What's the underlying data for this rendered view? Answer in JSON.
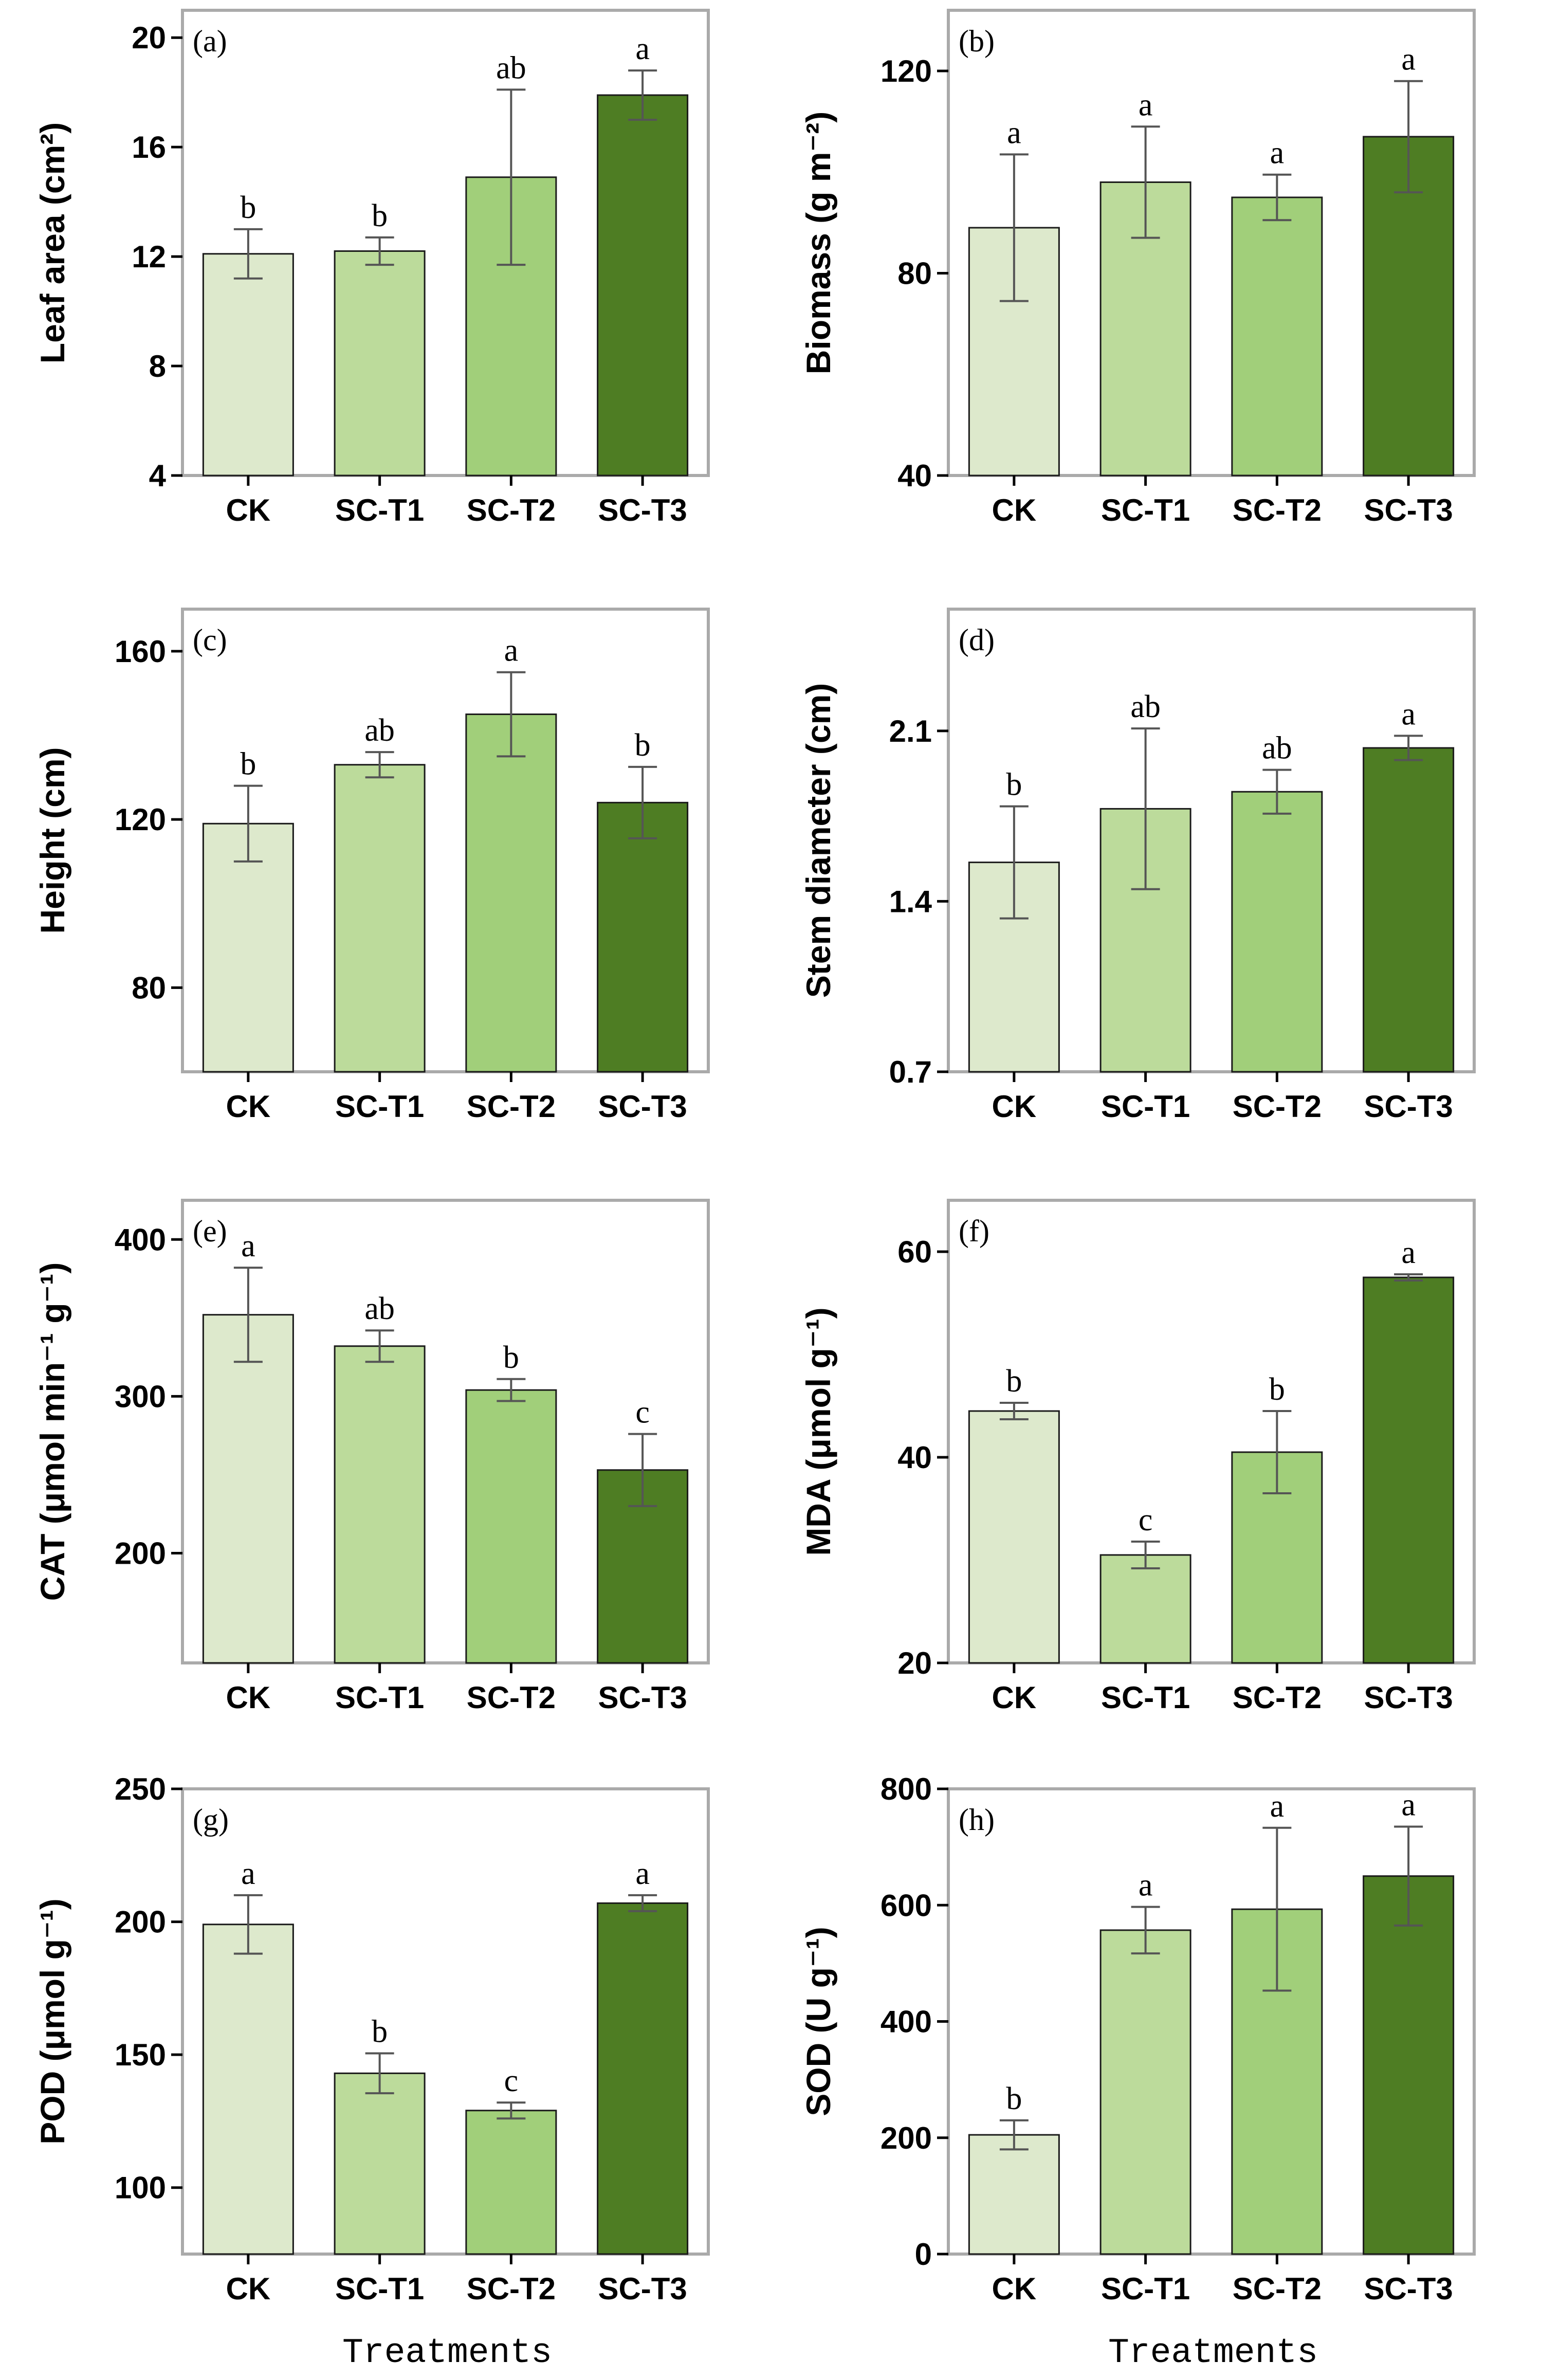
{
  "figure": {
    "xlabel_shared": "Treatments"
  },
  "colors": {
    "bars": [
      "#dde9cc",
      "#bcdb9b",
      "#a1cf7a",
      "#4e7d23"
    ],
    "bar_stroke": "#1a1a1a",
    "frame": "#aaaaaa",
    "error_bar": "#555555"
  },
  "chart_data": [
    {
      "panel": "(a)",
      "type": "bar",
      "categories": [
        "CK",
        "SC-T1",
        "SC-T2",
        "SC-T3"
      ],
      "values": [
        12.1,
        12.2,
        14.9,
        17.9
      ],
      "errors": [
        0.9,
        0.5,
        3.2,
        0.9
      ],
      "letters": [
        "b",
        "b",
        "ab",
        "a"
      ],
      "ylabel": "Leaf area (cm²)",
      "ylim": [
        4,
        21
      ],
      "yticks": [
        4,
        8,
        12,
        16,
        20
      ]
    },
    {
      "panel": "(b)",
      "type": "bar",
      "categories": [
        "CK",
        "SC-T1",
        "SC-T2",
        "SC-T3"
      ],
      "values": [
        89,
        98,
        95,
        107
      ],
      "errors": [
        14.5,
        11,
        4.5,
        11
      ],
      "letters": [
        "a",
        "a",
        "a",
        "a"
      ],
      "ylabel": "Biomass (g m⁻²)",
      "ylim": [
        40,
        132
      ],
      "yticks": [
        40,
        80,
        120
      ]
    },
    {
      "panel": "(c)",
      "type": "bar",
      "categories": [
        "CK",
        "SC-T1",
        "SC-T2",
        "SC-T3"
      ],
      "values": [
        119,
        133,
        145,
        124
      ],
      "errors": [
        9,
        3,
        10,
        8.5
      ],
      "letters": [
        "b",
        "ab",
        "a",
        "b"
      ],
      "ylabel": "Height (cm)",
      "ylim": [
        60,
        170
      ],
      "yticks": [
        80,
        120,
        160
      ]
    },
    {
      "panel": "(d)",
      "type": "bar",
      "categories": [
        "CK",
        "SC-T1",
        "SC-T2",
        "SC-T3"
      ],
      "values": [
        1.56,
        1.78,
        1.85,
        2.03
      ],
      "errors": [
        0.23,
        0.33,
        0.09,
        0.05
      ],
      "letters": [
        "b",
        "ab",
        "ab",
        "a"
      ],
      "ylabel": "Stem diameter (cm)",
      "ylim": [
        0.7,
        2.6
      ],
      "yticks": [
        0.7,
        1.4,
        2.1
      ]
    },
    {
      "panel": "(e)",
      "type": "bar",
      "categories": [
        "CK",
        "SC-T1",
        "SC-T2",
        "SC-T3"
      ],
      "values": [
        352,
        332,
        304,
        253
      ],
      "errors": [
        30,
        10,
        7,
        23
      ],
      "letters": [
        "a",
        "ab",
        "b",
        "c"
      ],
      "ylabel": "CAT (μmol min⁻¹ g⁻¹)",
      "ylim": [
        130,
        425
      ],
      "yticks": [
        200,
        300,
        400
      ]
    },
    {
      "panel": "(f)",
      "type": "bar",
      "categories": [
        "CK",
        "SC-T1",
        "SC-T2",
        "SC-T3"
      ],
      "values": [
        44.5,
        30.5,
        40.5,
        57.5
      ],
      "errors": [
        0.8,
        1.3,
        4,
        0.3
      ],
      "letters": [
        "b",
        "c",
        "b",
        "a"
      ],
      "ylabel": "MDA (μmol g⁻¹)",
      "ylim": [
        20,
        65
      ],
      "yticks": [
        20,
        40,
        60
      ]
    },
    {
      "panel": "(g)",
      "type": "bar",
      "categories": [
        "CK",
        "SC-T1",
        "SC-T2",
        "SC-T3"
      ],
      "values": [
        199,
        143,
        129,
        207
      ],
      "errors": [
        11,
        7.5,
        3,
        3
      ],
      "letters": [
        "a",
        "b",
        "c",
        "a"
      ],
      "ylabel": "POD (μmol g⁻¹)",
      "ylim": [
        75,
        250
      ],
      "yticks": [
        100,
        150,
        200,
        250
      ]
    },
    {
      "panel": "(h)",
      "type": "bar",
      "categories": [
        "CK",
        "SC-T1",
        "SC-T2",
        "SC-T3"
      ],
      "values": [
        205,
        557,
        593,
        650
      ],
      "errors": [
        25,
        40,
        140,
        85
      ],
      "letters": [
        "b",
        "a",
        "a",
        "a"
      ],
      "ylabel": "SOD (U g⁻¹)",
      "ylim": [
        0,
        800
      ],
      "yticks": [
        0,
        200,
        400,
        600,
        800
      ]
    }
  ]
}
